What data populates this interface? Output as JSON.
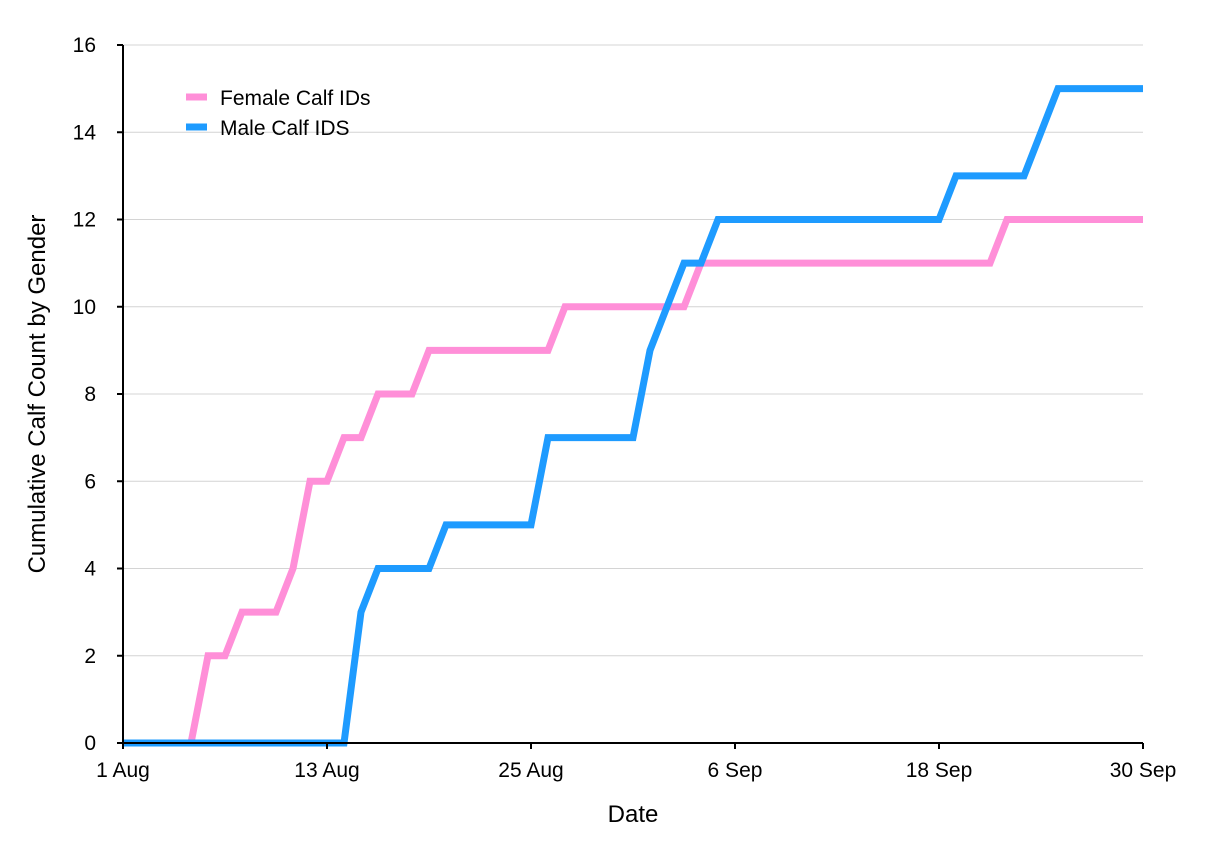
{
  "chart_data": {
    "type": "line",
    "title": "",
    "xlabel": "Date",
    "ylabel": "Cumulative Calf Count by Gender",
    "xlim": [
      0,
      60
    ],
    "ylim": [
      0,
      16
    ],
    "x_ticks": [
      {
        "value": 0,
        "label": "1 Aug"
      },
      {
        "value": 12,
        "label": "13 Aug"
      },
      {
        "value": 24,
        "label": "25 Aug"
      },
      {
        "value": 36,
        "label": "6 Sep"
      },
      {
        "value": 48,
        "label": "18 Sep"
      },
      {
        "value": 60,
        "label": "30 Sep"
      }
    ],
    "y_ticks": [
      0,
      2,
      4,
      6,
      8,
      10,
      12,
      14,
      16
    ],
    "grid": "horizontal",
    "legend_position": "top-left",
    "series": [
      {
        "name": "Female Calf IDs",
        "color": "#FF8FD8",
        "x": [
          0,
          4,
          5,
          6,
          7,
          9,
          10,
          11,
          12,
          13,
          14,
          15,
          17,
          18,
          25,
          26,
          33,
          34,
          51,
          52,
          60
        ],
        "y": [
          0,
          0,
          2,
          2,
          3,
          3,
          4,
          6,
          6,
          7,
          7,
          8,
          8,
          9,
          9,
          10,
          10,
          11,
          11,
          12,
          12
        ]
      },
      {
        "name": "Male Calf IDS",
        "color": "#1E9BFF",
        "x": [
          0,
          13,
          14,
          15,
          18,
          19,
          24,
          25,
          30,
          31,
          33,
          34,
          35,
          48,
          49,
          53,
          55,
          60
        ],
        "y": [
          0,
          0,
          3,
          4,
          4,
          5,
          5,
          7,
          7,
          9,
          11,
          11,
          12,
          12,
          13,
          13,
          15,
          15
        ]
      }
    ]
  }
}
